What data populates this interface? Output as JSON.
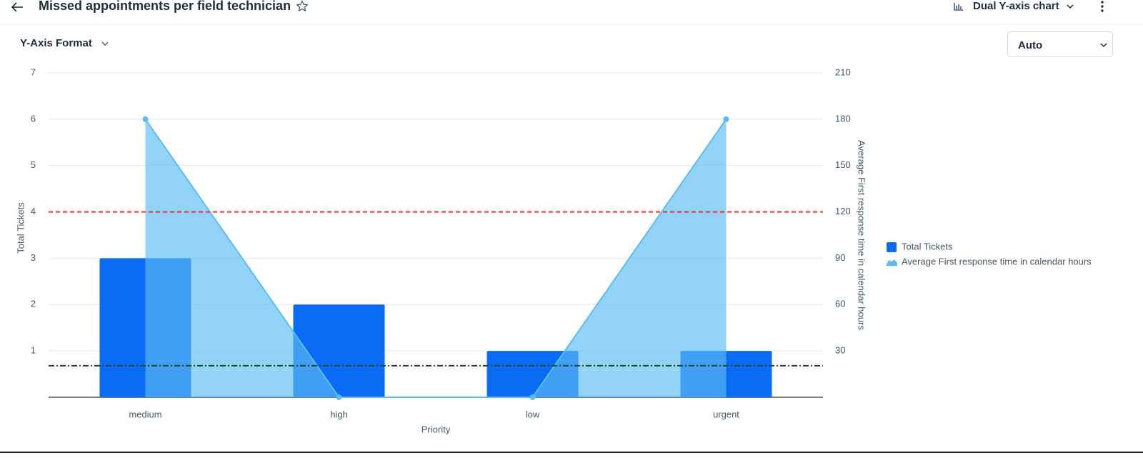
{
  "header": {
    "title": "Missed appointments per field technician",
    "chart_type_label": "Dual Y-axis chart"
  },
  "controls": {
    "y_axis_format_label": "Y-Axis Format",
    "y_axis_format_value": "Auto"
  },
  "chart_data": {
    "type": "bar-area",
    "x_label": "Priority",
    "y_label": "Total Tickets",
    "y2_label": "Average First response time in calendar hours",
    "categories": [
      "medium",
      "high",
      "low",
      "urgent"
    ],
    "series": [
      {
        "name": "Total Tickets",
        "type": "bar",
        "color": "#0a6cf5",
        "values": [
          3,
          2,
          1,
          1
        ]
      },
      {
        "name": "Average First response time in calendar hours",
        "type": "area",
        "axis": "y2",
        "color": "#5bbcf5",
        "values": [
          180,
          0,
          0,
          180
        ]
      }
    ],
    "ylim": [
      0,
      7
    ],
    "yticks": [
      1,
      2,
      3,
      4,
      5,
      6,
      7
    ],
    "y2lim": [
      0,
      210
    ],
    "y2ticks": [
      30,
      60,
      90,
      120,
      150,
      180,
      210
    ],
    "reference_lines": [
      {
        "value": 4,
        "color": "#e8302a",
        "style": "dashed"
      },
      {
        "value": 0.68,
        "color": "#1d4a12",
        "style": "dash-dot"
      }
    ],
    "grid": true,
    "legend": "right"
  }
}
